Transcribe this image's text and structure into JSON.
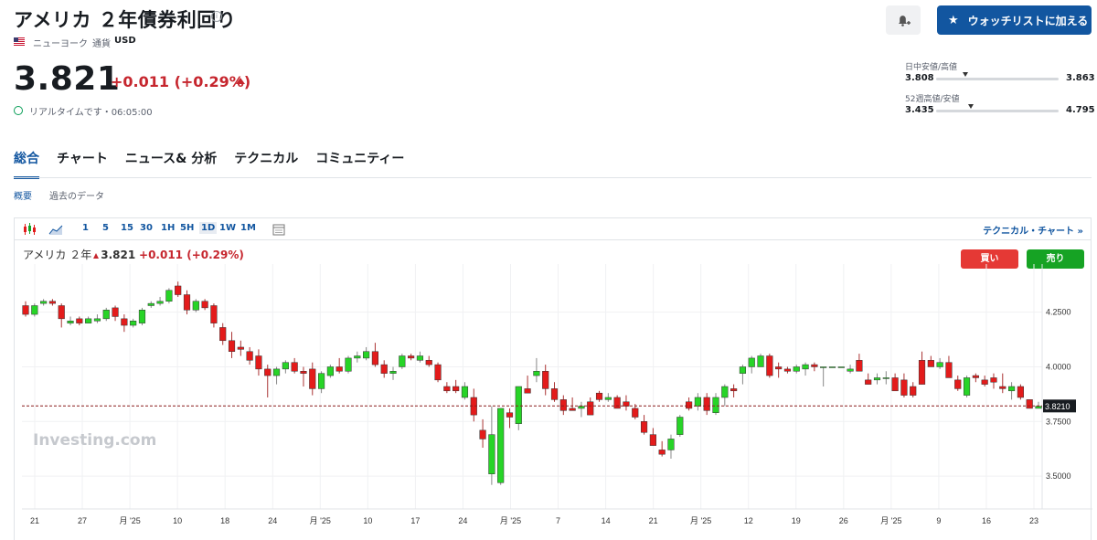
{
  "header": {
    "title": "アメリカ ２年債券利回り",
    "exchange": "ニューヨーク",
    "currency_label": "通貨",
    "currency": "USD",
    "watchlist_label": "ウォッチリストに加える"
  },
  "quote": {
    "price": "3.821",
    "change": "+0.011 (+0.29%)",
    "realtime_text": "リアルタイムです・06:05:00"
  },
  "ranges": {
    "day_label": "日中安値/高値",
    "day_low": "3.808",
    "day_high": "3.863",
    "day_position": 0.24,
    "year_label": "52週高値/安値",
    "year_low": "3.435",
    "year_high": "4.795",
    "year_position": 0.28
  },
  "tabs": [
    "総合",
    "チャート",
    "ニュース& 分析",
    "テクニカル",
    "コミュニティー"
  ],
  "subtabs": [
    "概要",
    "過去のデータ"
  ],
  "toolbar": {
    "intervals": [
      "1",
      "5",
      "15",
      "30",
      "1H",
      "5H",
      "1D",
      "1W",
      "1M"
    ],
    "selected": "1D",
    "technical_link": "テクニカル・チャート »"
  },
  "chart_header": {
    "name": "アメリカ ２年",
    "price": "3.821",
    "change": "+0.011 (+0.29%)",
    "buy_label": "買い",
    "sell_label": "売り"
  },
  "colors": {
    "up": "#27d427",
    "down": "#e31b1b",
    "accent": "#1256a0"
  },
  "chart_data": {
    "type": "candlestick",
    "watermark": "Investing.com",
    "last_price_label": "3.8210",
    "yticks": [
      "4.2500",
      "4.0000",
      "3.7500",
      "3.5000"
    ],
    "ylim": [
      3.35,
      4.42
    ],
    "xticks": [
      "21",
      "27",
      "月 '25",
      "10",
      "18",
      "24",
      "月 '25",
      "10",
      "17",
      "24",
      "月 '25",
      "7",
      "14",
      "21",
      "月 '25",
      "12",
      "19",
      "26",
      "月 '25",
      "9",
      "16",
      "23"
    ],
    "ohlc": [
      [
        4.28,
        4.3,
        4.23,
        4.24
      ],
      [
        4.24,
        4.29,
        4.23,
        4.28
      ],
      [
        4.29,
        4.31,
        4.28,
        4.3
      ],
      [
        4.3,
        4.31,
        4.28,
        4.29
      ],
      [
        4.28,
        4.29,
        4.18,
        4.22
      ],
      [
        4.2,
        4.23,
        4.19,
        4.21
      ],
      [
        4.22,
        4.23,
        4.19,
        4.2
      ],
      [
        4.2,
        4.23,
        4.2,
        4.22
      ],
      [
        4.21,
        4.24,
        4.2,
        4.22
      ],
      [
        4.22,
        4.27,
        4.21,
        4.26
      ],
      [
        4.27,
        4.28,
        4.21,
        4.23
      ],
      [
        4.22,
        4.24,
        4.16,
        4.19
      ],
      [
        4.19,
        4.22,
        4.18,
        4.21
      ],
      [
        4.2,
        4.27,
        4.19,
        4.26
      ],
      [
        4.28,
        4.3,
        4.27,
        4.29
      ],
      [
        4.29,
        4.32,
        4.28,
        4.3
      ],
      [
        4.3,
        4.36,
        4.29,
        4.35
      ],
      [
        4.37,
        4.39,
        4.32,
        4.33
      ],
      [
        4.33,
        4.35,
        4.24,
        4.26
      ],
      [
        4.26,
        4.31,
        4.25,
        4.3
      ],
      [
        4.3,
        4.31,
        4.26,
        4.27
      ],
      [
        4.28,
        4.29,
        4.18,
        4.2
      ],
      [
        4.18,
        4.2,
        4.1,
        4.12
      ],
      [
        4.12,
        4.16,
        4.04,
        4.07
      ],
      [
        4.09,
        4.12,
        4.05,
        4.08
      ],
      [
        4.07,
        4.09,
        4.01,
        4.03
      ],
      [
        4.05,
        4.08,
        3.96,
        3.99
      ],
      [
        3.99,
        4.01,
        3.86,
        3.96
      ],
      [
        3.96,
        4.0,
        3.92,
        3.99
      ],
      [
        3.99,
        4.03,
        3.97,
        4.02
      ],
      [
        4.02,
        4.04,
        3.97,
        3.98
      ],
      [
        3.98,
        4.0,
        3.91,
        3.97
      ],
      [
        3.99,
        4.02,
        3.87,
        3.9
      ],
      [
        3.9,
        3.98,
        3.88,
        3.97
      ],
      [
        3.96,
        4.01,
        3.95,
        4.0
      ],
      [
        4.0,
        4.04,
        3.97,
        3.98
      ],
      [
        3.98,
        4.05,
        3.97,
        4.04
      ],
      [
        4.04,
        4.07,
        4.02,
        4.05
      ],
      [
        4.04,
        4.09,
        4.03,
        4.07
      ],
      [
        4.07,
        4.11,
        4.0,
        4.01
      ],
      [
        4.01,
        4.03,
        3.95,
        3.97
      ],
      [
        3.97,
        4.0,
        3.94,
        3.98
      ],
      [
        4.0,
        4.06,
        3.99,
        4.05
      ],
      [
        4.05,
        4.06,
        4.03,
        4.04
      ],
      [
        4.03,
        4.07,
        4.02,
        4.05
      ],
      [
        4.03,
        4.05,
        4.0,
        4.01
      ],
      [
        4.01,
        4.02,
        3.93,
        3.94
      ],
      [
        3.91,
        3.93,
        3.88,
        3.89
      ],
      [
        3.91,
        3.94,
        3.88,
        3.89
      ],
      [
        3.86,
        3.93,
        3.85,
        3.91
      ],
      [
        3.86,
        3.9,
        3.75,
        3.78
      ],
      [
        3.71,
        3.76,
        3.63,
        3.67
      ],
      [
        3.51,
        3.82,
        3.46,
        3.69
      ],
      [
        3.47,
        3.8,
        3.46,
        3.81
      ],
      [
        3.79,
        3.81,
        3.72,
        3.77
      ],
      [
        3.74,
        3.91,
        3.71,
        3.91
      ],
      [
        3.9,
        3.96,
        3.88,
        3.88
      ],
      [
        3.96,
        4.04,
        3.93,
        3.98
      ],
      [
        3.98,
        4.01,
        3.87,
        3.9
      ],
      [
        3.9,
        3.93,
        3.84,
        3.85
      ],
      [
        3.85,
        3.87,
        3.78,
        3.8
      ],
      [
        3.81,
        3.86,
        3.8,
        3.8
      ],
      [
        3.81,
        3.84,
        3.77,
        3.82
      ],
      [
        3.84,
        3.86,
        3.78,
        3.78
      ],
      [
        3.88,
        3.89,
        3.84,
        3.85
      ],
      [
        3.85,
        3.88,
        3.84,
        3.86
      ],
      [
        3.86,
        3.87,
        3.81,
        3.81
      ],
      [
        3.84,
        3.87,
        3.8,
        3.82
      ],
      [
        3.81,
        3.83,
        3.76,
        3.77
      ],
      [
        3.75,
        3.78,
        3.69,
        3.7
      ],
      [
        3.69,
        3.72,
        3.64,
        3.64
      ],
      [
        3.62,
        3.66,
        3.59,
        3.6
      ],
      [
        3.62,
        3.69,
        3.58,
        3.67
      ],
      [
        3.69,
        3.78,
        3.68,
        3.77
      ],
      [
        3.84,
        3.86,
        3.8,
        3.81
      ],
      [
        3.82,
        3.88,
        3.8,
        3.86
      ],
      [
        3.86,
        3.88,
        3.78,
        3.8
      ],
      [
        3.79,
        3.88,
        3.78,
        3.86
      ],
      [
        3.86,
        3.92,
        3.82,
        3.91
      ],
      [
        3.9,
        3.92,
        3.86,
        3.89
      ],
      [
        3.97,
        4.01,
        3.92,
        4.0
      ],
      [
        4.0,
        4.05,
        3.97,
        4.04
      ],
      [
        4.0,
        4.06,
        4.0,
        4.05
      ],
      [
        4.05,
        4.06,
        3.95,
        3.96
      ],
      [
        4.0,
        4.02,
        3.95,
        3.99
      ],
      [
        3.99,
        4.0,
        3.97,
        3.98
      ],
      [
        3.98,
        4.01,
        3.97,
        4.0
      ],
      [
        3.99,
        4.02,
        3.96,
        4.01
      ],
      [
        4.01,
        4.02,
        3.98,
        4.0
      ],
      [
        4.0,
        4.0,
        3.91,
        4.0
      ],
      [
        4.0,
        4.0,
        4.0,
        4.0
      ],
      [
        4.0,
        4.0,
        4.0,
        4.0
      ],
      [
        3.98,
        4.01,
        3.97,
        3.99
      ],
      [
        4.03,
        4.06,
        3.98,
        3.98
      ],
      [
        3.94,
        3.97,
        3.92,
        3.92
      ],
      [
        3.94,
        3.97,
        3.92,
        3.95
      ],
      [
        3.95,
        3.98,
        3.92,
        3.95
      ],
      [
        3.95,
        3.97,
        3.9,
        3.89
      ],
      [
        3.94,
        3.97,
        3.86,
        3.87
      ],
      [
        3.91,
        3.93,
        3.86,
        3.87
      ],
      [
        4.03,
        4.07,
        3.92,
        3.92
      ],
      [
        4.03,
        4.05,
        4.0,
        4.0
      ],
      [
        4.0,
        4.04,
        3.99,
        4.02
      ],
      [
        4.02,
        4.05,
        3.96,
        3.95
      ],
      [
        3.94,
        3.96,
        3.89,
        3.9
      ],
      [
        3.87,
        3.96,
        3.86,
        3.95
      ],
      [
        3.96,
        3.97,
        3.93,
        3.95
      ],
      [
        3.94,
        3.96,
        3.91,
        3.92
      ],
      [
        3.95,
        3.97,
        3.9,
        3.93
      ],
      [
        3.91,
        3.97,
        3.88,
        3.9
      ],
      [
        3.89,
        3.93,
        3.85,
        3.91
      ],
      [
        3.91,
        3.92,
        3.85,
        3.86
      ],
      [
        3.85,
        3.85,
        3.81,
        3.81
      ],
      [
        3.81,
        3.84,
        3.81,
        3.82
      ]
    ]
  }
}
